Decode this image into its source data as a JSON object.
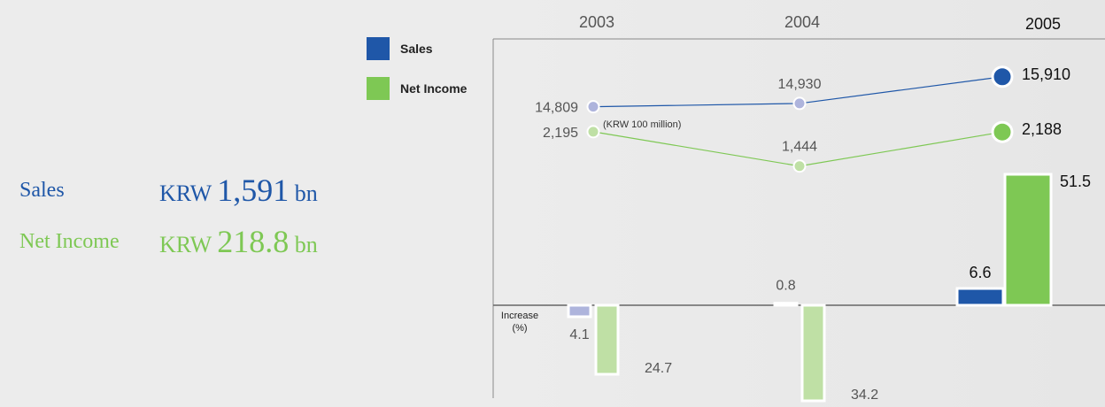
{
  "summary": {
    "sales_label": "Sales",
    "sales_currency": "KRW",
    "sales_amount": "1,591",
    "sales_unit": "bn",
    "net_income_label": "Net Income",
    "net_income_currency": "KRW",
    "net_income_amount": "218.8",
    "net_income_unit": "bn"
  },
  "colors": {
    "sales": "#1f57a8",
    "sales_light": "#aeb4dc",
    "net_income": "#7ec854",
    "net_income_light": "#bfe0a5"
  },
  "chart_data": [
    {
      "type": "line",
      "categories": [
        "2003",
        "2004",
        "2005"
      ],
      "unit_note": "(KRW 100 million)",
      "series": [
        {
          "name": "Sales",
          "values": [
            14809,
            14930,
            15910
          ],
          "labels": [
            "14,809",
            "14,930",
            "15,910"
          ]
        },
        {
          "name": "Net Income",
          "values": [
            2195,
            1444,
            2188
          ],
          "labels": [
            "2,195",
            "1,444",
            "2,188"
          ]
        }
      ],
      "legend": "top-left",
      "grid": false
    },
    {
      "type": "bar",
      "categories": [
        "2003",
        "2004",
        "2005"
      ],
      "ylabel": "Increase\n(%)",
      "series": [
        {
          "name": "Sales",
          "values": [
            -4.1,
            0.8,
            6.6
          ],
          "labels": [
            "4.1",
            "0.8",
            "6.6"
          ]
        },
        {
          "name": "Net Income",
          "values": [
            -24.7,
            -34.2,
            51.5
          ],
          "labels": [
            "24.7",
            "34.2",
            "51.5"
          ]
        }
      ],
      "grid": false
    }
  ]
}
